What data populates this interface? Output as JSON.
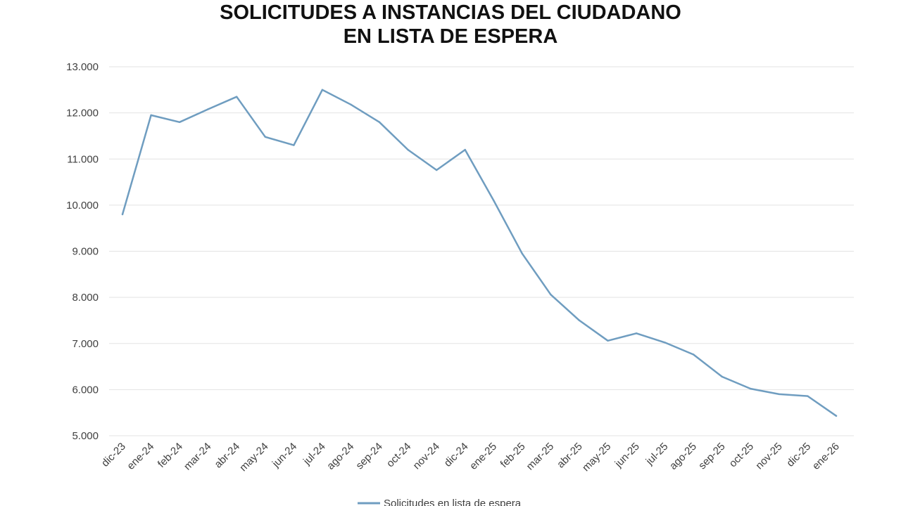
{
  "chart_data": {
    "type": "line",
    "title_lines": [
      "SOLICITUDES A INSTANCIAS DEL CIUDADANO",
      "EN LISTA DE ESPERA"
    ],
    "categories": [
      "dic-23",
      "ene-24",
      "feb-24",
      "mar-24",
      "abr-24",
      "may-24",
      "jun-24",
      "jul-24",
      "ago-24",
      "sep-24",
      "oct-24",
      "nov-24",
      "dic-24",
      "ene-25",
      "feb-25",
      "mar-25",
      "abr-25",
      "may-25",
      "jun-25",
      "jul-25",
      "ago-25",
      "sep-25",
      "oct-25",
      "nov-25",
      "dic-25",
      "ene-26"
    ],
    "series": [
      {
        "name": "Solicitudes en lista de espera",
        "values": [
          9800,
          11950,
          11800,
          12080,
          12350,
          11480,
          11300,
          12500,
          12180,
          11800,
          11200,
          10760,
          11200,
          10100,
          8950,
          8060,
          7500,
          7060,
          7220,
          7020,
          6760,
          6280,
          6020,
          5900,
          5860,
          5430
        ],
        "color": "#6f9dc0"
      }
    ],
    "ylim": [
      5000,
      13000
    ],
    "yticks": [
      {
        "value": 13000,
        "label": "13.000"
      },
      {
        "value": 12000,
        "label": "12.000"
      },
      {
        "value": 11000,
        "label": "11.000"
      },
      {
        "value": 10000,
        "label": "10.000"
      },
      {
        "value": 9000,
        "label": "9.000"
      },
      {
        "value": 8000,
        "label": "8.000"
      },
      {
        "value": 7000,
        "label": "7.000"
      },
      {
        "value": 6000,
        "label": "6.000"
      },
      {
        "value": 5000,
        "label": "5.000"
      }
    ],
    "grid": true,
    "legend_position": "bottom",
    "gridline_color": "#e3e3e3",
    "tick_label_color": "#404040",
    "title_color": "#111111"
  }
}
